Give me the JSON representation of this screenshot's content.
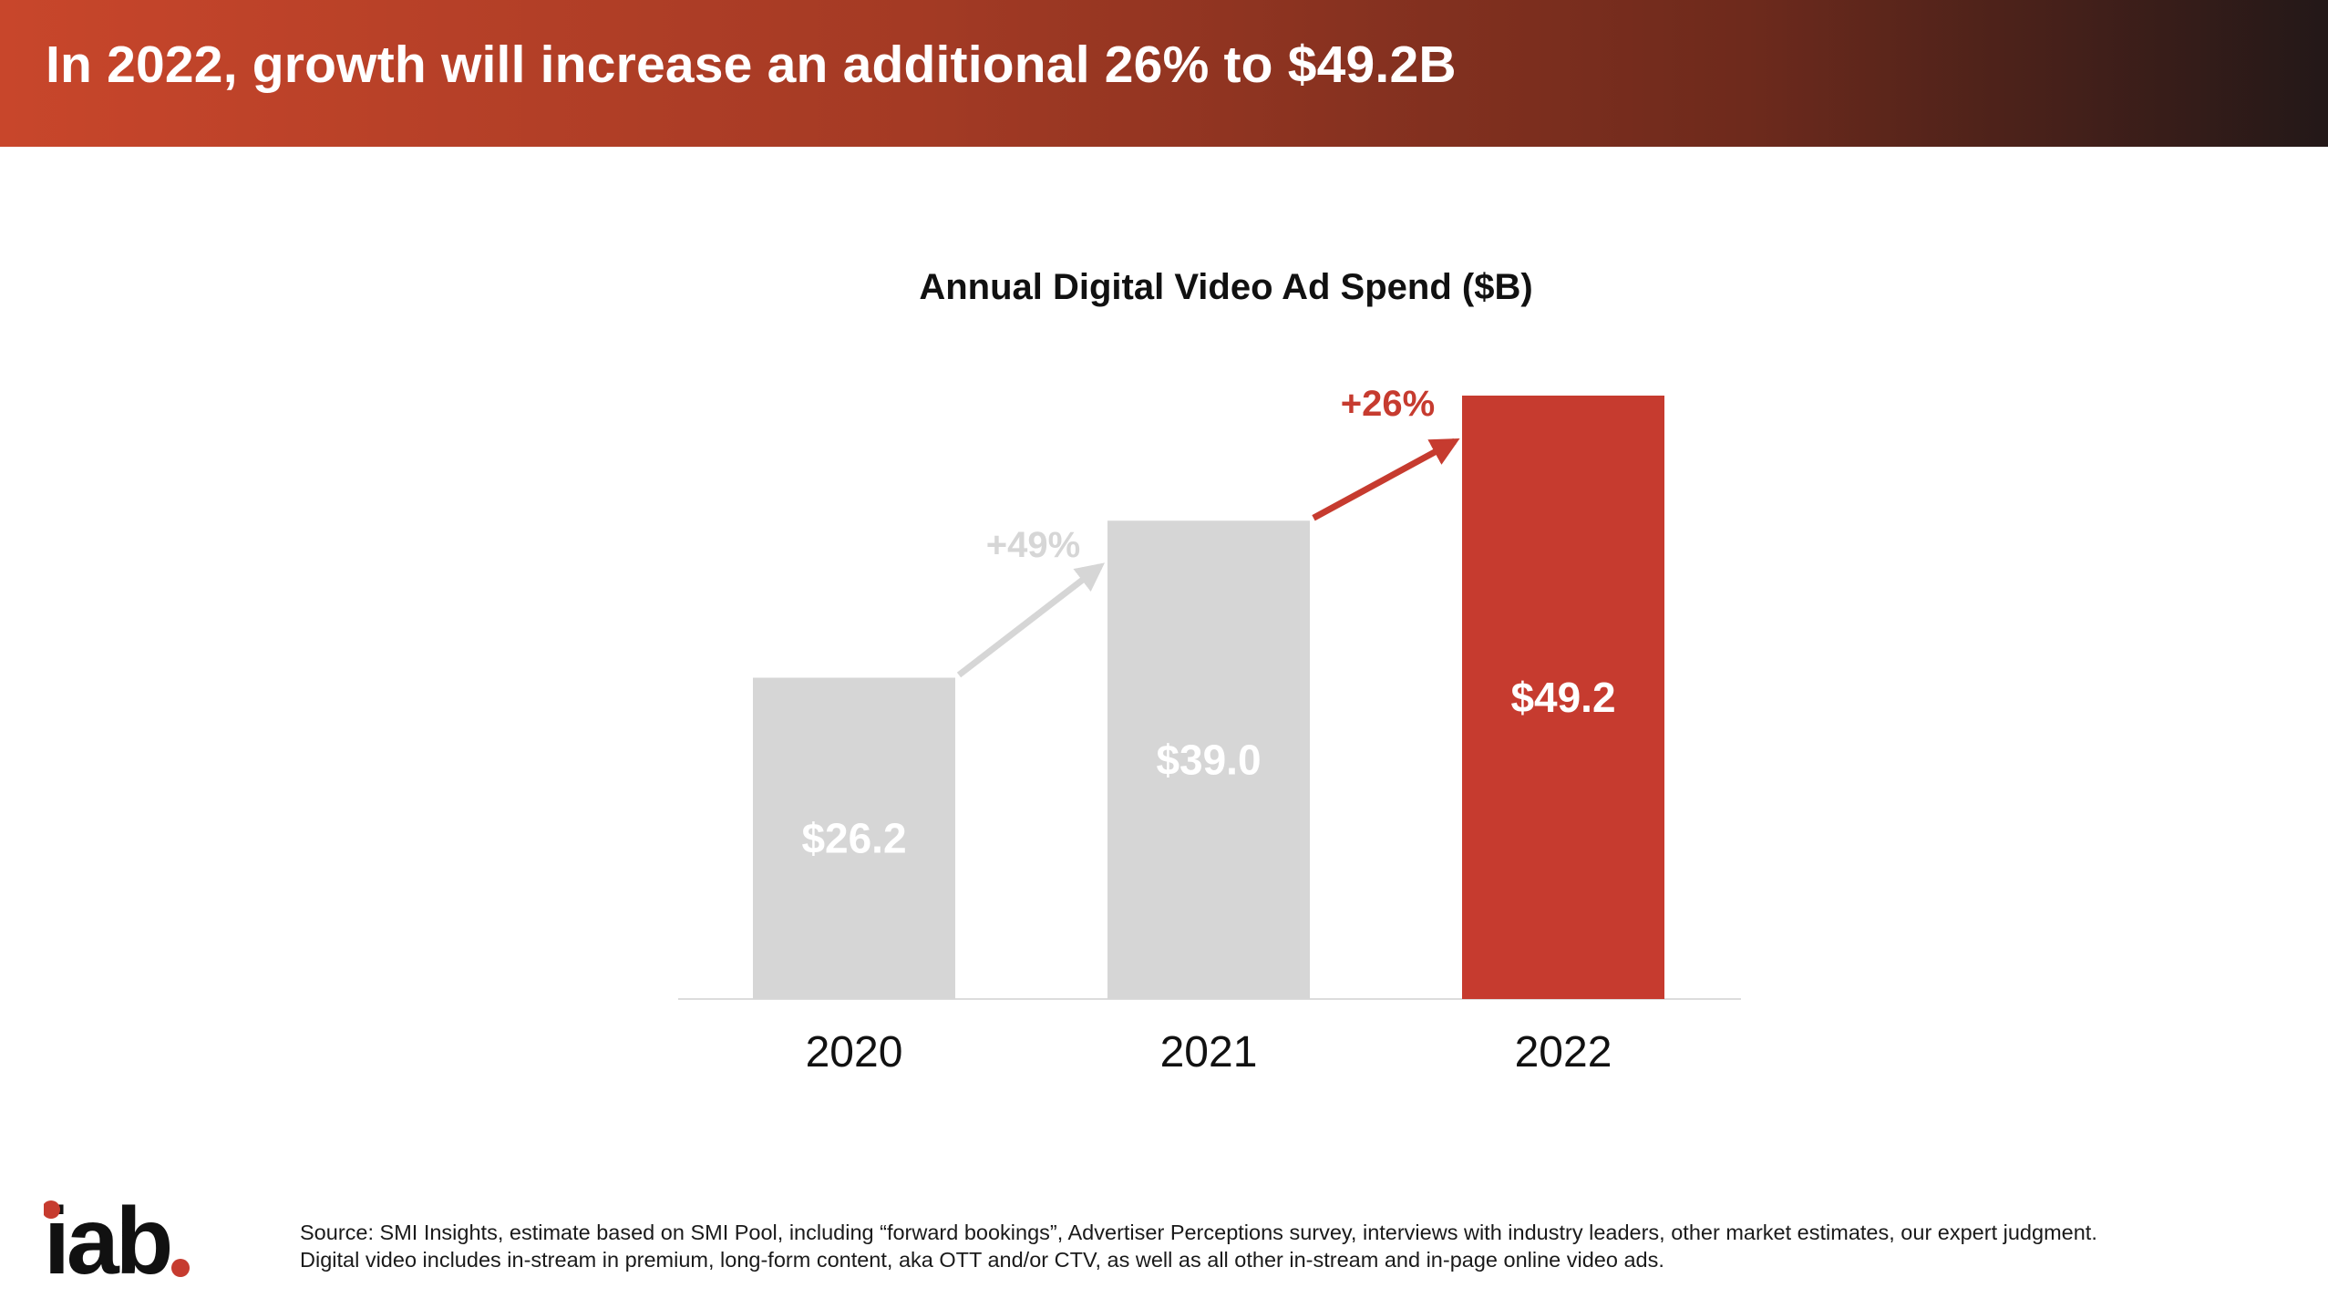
{
  "header": {
    "title": "In 2022, growth will increase an additional 26% to $49.2B"
  },
  "chart_data": {
    "type": "bar",
    "title": "Annual Digital Video Ad Spend ($B)",
    "categories": [
      "2020",
      "2021",
      "2022"
    ],
    "values": [
      26.2,
      39.0,
      49.2
    ],
    "value_labels": [
      "$26.2",
      "$39.0",
      "$49.2"
    ],
    "bar_colors": [
      "#d6d6d6",
      "#d6d6d6",
      "#c63b2f"
    ],
    "growth": [
      {
        "from": "2020",
        "to": "2021",
        "label": "+49%",
        "color": "#d6d6d6"
      },
      {
        "from": "2021",
        "to": "2022",
        "label": "+26%",
        "color": "#c63b2f"
      }
    ],
    "xlabel": "",
    "ylabel": "",
    "ylim": [
      0,
      49.2
    ],
    "grid": false,
    "legend": "none"
  },
  "footer": {
    "logo_text": "iab",
    "source_line1": "Source: SMI Insights, estimate based on SMI Pool, including “forward bookings”, Advertiser Perceptions survey, interviews with industry leaders, other market estimates, our expert judgment.",
    "source_line2": "Digital video includes in-stream in premium, long-form content, aka OTT and/or CTV, as well as all other in-stream and in-page online video ads."
  },
  "colors": {
    "accent": "#c63b2f",
    "bar_neutral": "#d6d6d6",
    "header_start": "#c8462b",
    "header_end": "#231818"
  }
}
